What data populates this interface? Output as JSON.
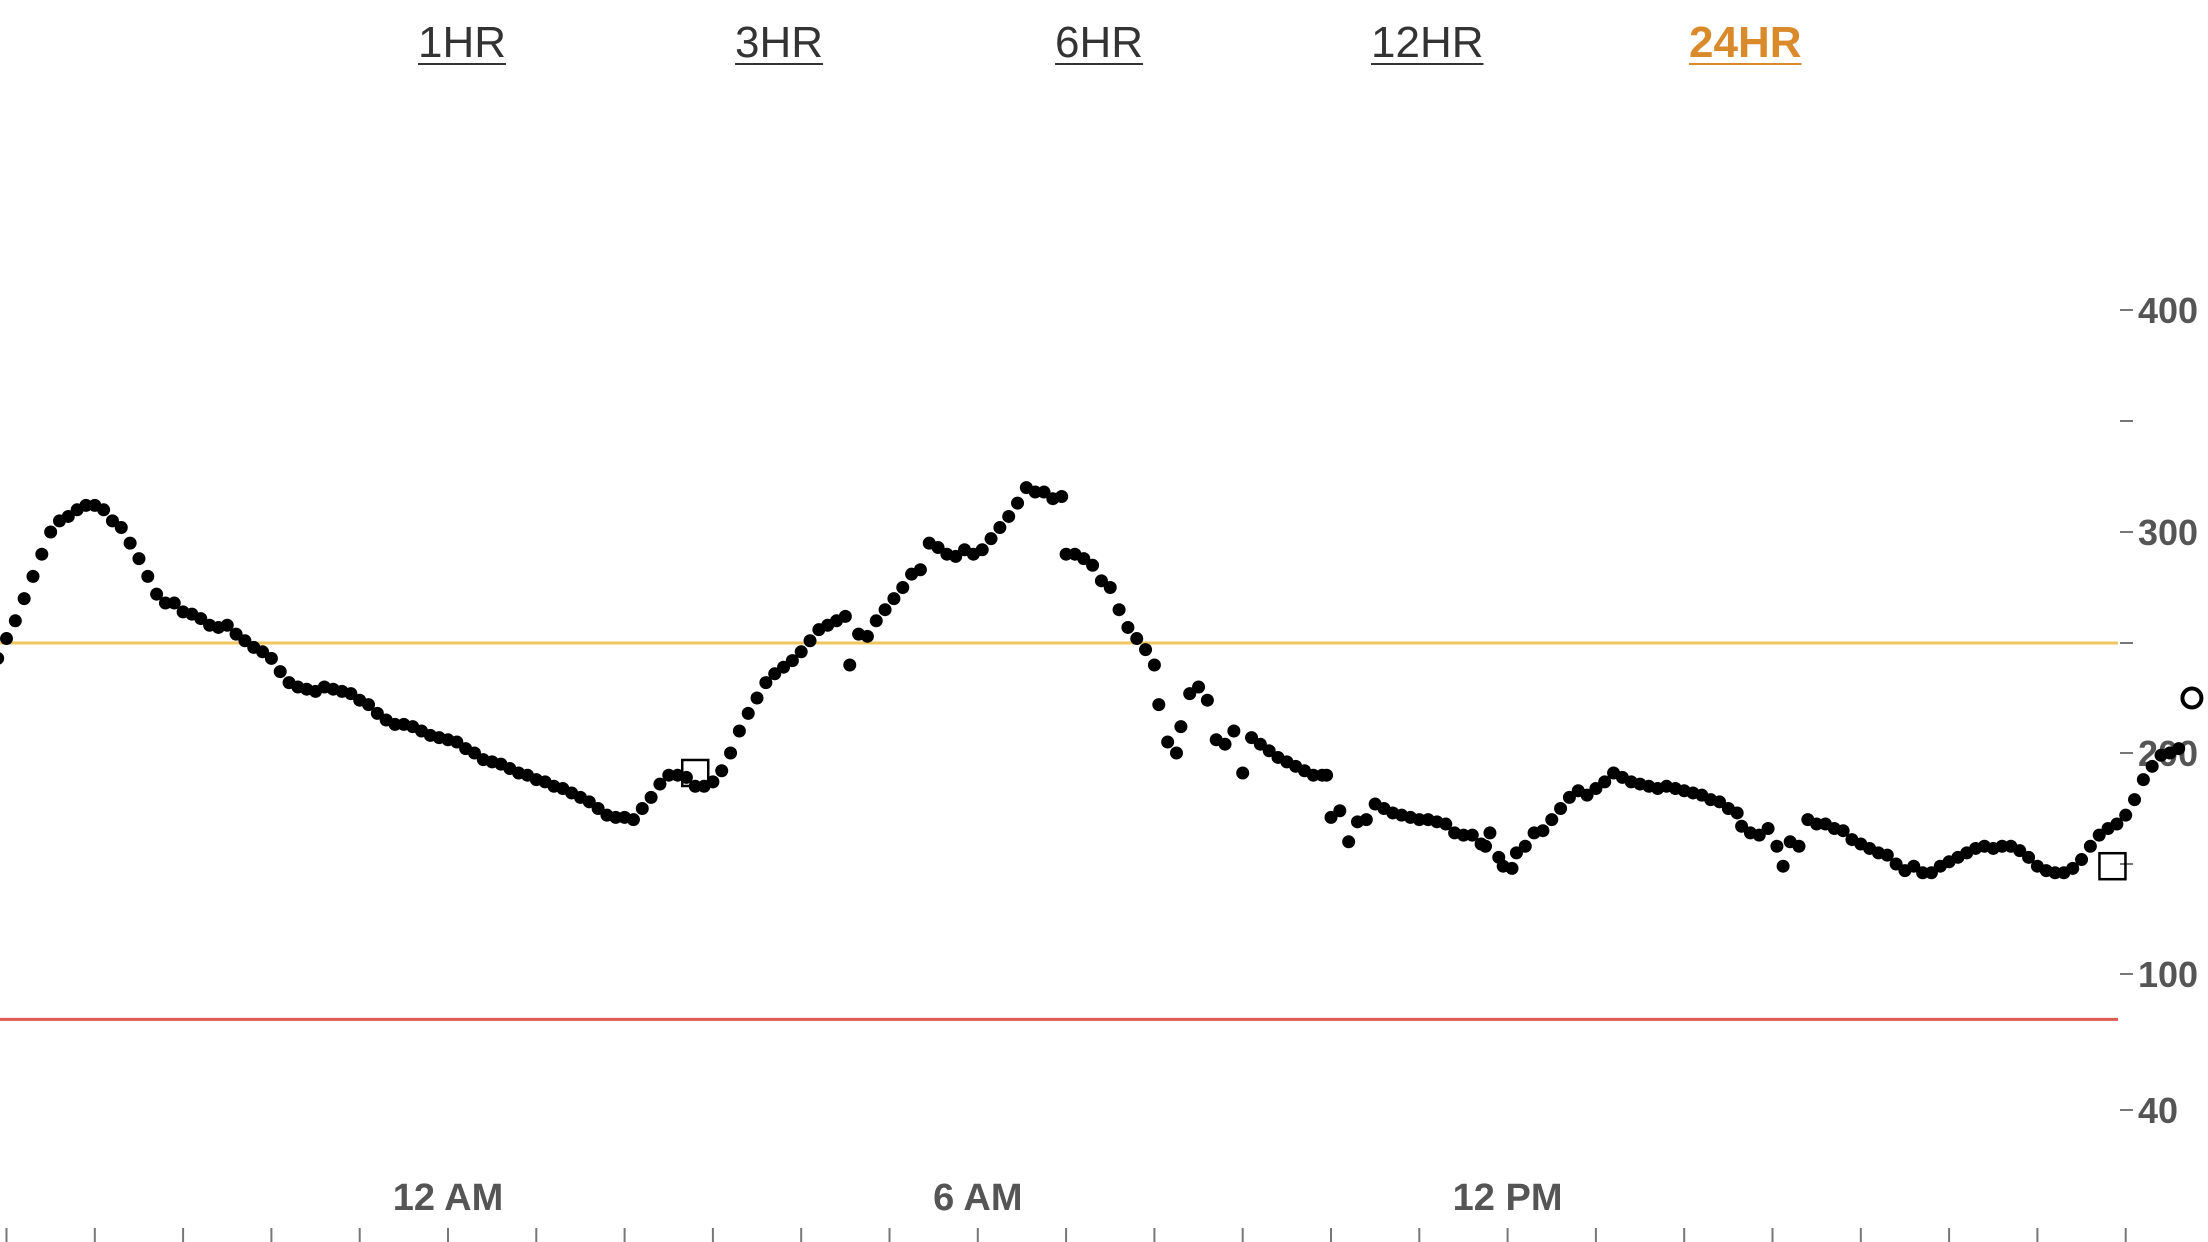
{
  "tabs": [
    {
      "label": "1HR",
      "active": false
    },
    {
      "label": "3HR",
      "active": false
    },
    {
      "label": "6HR",
      "active": false
    },
    {
      "label": "12HR",
      "active": false
    },
    {
      "label": "24HR",
      "active": true
    }
  ],
  "colors": {
    "accent": "#d98a2b",
    "high_line": "#f0c75e",
    "low_line": "#e05a4f",
    "points": "#000000",
    "axis_text": "#555555"
  },
  "chart_data": {
    "type": "scatter",
    "x_unit": "hours relative to midnight",
    "xlim": [
      -5.1,
      18.9
    ],
    "ylim": [
      40,
      400
    ],
    "y_ticks": [
      40,
      100,
      150,
      200,
      250,
      300,
      350,
      400
    ],
    "y_tick_labels": [
      "40",
      "100",
      "",
      "200",
      "",
      "300",
      "",
      "400"
    ],
    "x_labels": [
      {
        "x": 0,
        "label": "12 AM"
      },
      {
        "x": 6,
        "label": "6 AM"
      },
      {
        "x": 12,
        "label": "12 PM"
      }
    ],
    "high_threshold": 250,
    "low_threshold": 80,
    "points": [
      [
        -5.1,
        243
      ],
      [
        -5.0,
        252
      ],
      [
        -4.9,
        260
      ],
      [
        -4.8,
        270
      ],
      [
        -4.7,
        280
      ],
      [
        -4.6,
        290
      ],
      [
        -4.5,
        300
      ],
      [
        -4.4,
        305
      ],
      [
        -4.3,
        307
      ],
      [
        -4.2,
        310
      ],
      [
        -4.1,
        312
      ],
      [
        -4.0,
        312
      ],
      [
        -3.9,
        310
      ],
      [
        -3.8,
        305
      ],
      [
        -3.7,
        302
      ],
      [
        -3.6,
        295
      ],
      [
        -3.5,
        288
      ],
      [
        -3.4,
        280
      ],
      [
        -3.3,
        272
      ],
      [
        -3.2,
        268
      ],
      [
        -3.1,
        268
      ],
      [
        -3.0,
        264
      ],
      [
        -2.9,
        263
      ],
      [
        -2.8,
        261
      ],
      [
        -2.7,
        258
      ],
      [
        -2.6,
        257
      ],
      [
        -2.5,
        258
      ],
      [
        -2.4,
        254
      ],
      [
        -2.3,
        251
      ],
      [
        -2.2,
        248
      ],
      [
        -2.1,
        246
      ],
      [
        -2.0,
        243
      ],
      [
        -1.9,
        237
      ],
      [
        -1.8,
        232
      ],
      [
        -1.7,
        230
      ],
      [
        -1.6,
        229
      ],
      [
        -1.5,
        228
      ],
      [
        -1.4,
        230
      ],
      [
        -1.3,
        229
      ],
      [
        -1.2,
        228
      ],
      [
        -1.1,
        227
      ],
      [
        -1.0,
        224
      ],
      [
        -0.9,
        222
      ],
      [
        -0.8,
        218
      ],
      [
        -0.7,
        215
      ],
      [
        -0.6,
        213
      ],
      [
        -0.5,
        213
      ],
      [
        -0.4,
        212
      ],
      [
        -0.3,
        210
      ],
      [
        -0.2,
        208
      ],
      [
        -0.1,
        207
      ],
      [
        0.0,
        206
      ],
      [
        0.1,
        205
      ],
      [
        0.2,
        202
      ],
      [
        0.3,
        200
      ],
      [
        0.4,
        197
      ],
      [
        0.5,
        196
      ],
      [
        0.6,
        195
      ],
      [
        0.7,
        193
      ],
      [
        0.8,
        191
      ],
      [
        0.9,
        190
      ],
      [
        1.0,
        188
      ],
      [
        1.1,
        187
      ],
      [
        1.2,
        185
      ],
      [
        1.3,
        184
      ],
      [
        1.4,
        182
      ],
      [
        1.5,
        180
      ],
      [
        1.6,
        178
      ],
      [
        1.7,
        175
      ],
      [
        1.8,
        172
      ],
      [
        1.9,
        171
      ],
      [
        2.0,
        171
      ],
      [
        2.1,
        170
      ],
      [
        2.2,
        175
      ],
      [
        2.3,
        180
      ],
      [
        2.4,
        186
      ],
      [
        2.5,
        190
      ],
      [
        2.6,
        190
      ],
      [
        2.7,
        189
      ],
      [
        2.8,
        185
      ],
      [
        2.9,
        185
      ],
      [
        3.0,
        187
      ],
      [
        3.1,
        192
      ],
      [
        3.2,
        200
      ],
      [
        3.3,
        210
      ],
      [
        3.4,
        218
      ],
      [
        3.5,
        225
      ],
      [
        3.6,
        232
      ],
      [
        3.7,
        236
      ],
      [
        3.8,
        239
      ],
      [
        3.9,
        242
      ],
      [
        4.0,
        246
      ],
      [
        4.1,
        251
      ],
      [
        4.2,
        256
      ],
      [
        4.3,
        258
      ],
      [
        4.4,
        260
      ],
      [
        4.5,
        262
      ],
      [
        4.55,
        240
      ],
      [
        4.65,
        254
      ],
      [
        4.75,
        253
      ],
      [
        4.85,
        260
      ],
      [
        4.95,
        265
      ],
      [
        5.05,
        270
      ],
      [
        5.15,
        275
      ],
      [
        5.25,
        281
      ],
      [
        5.35,
        283
      ],
      [
        5.45,
        295
      ],
      [
        5.55,
        293
      ],
      [
        5.65,
        290
      ],
      [
        5.75,
        289
      ],
      [
        5.85,
        292
      ],
      [
        5.95,
        290
      ],
      [
        6.05,
        292
      ],
      [
        6.15,
        297
      ],
      [
        6.25,
        302
      ],
      [
        6.35,
        307
      ],
      [
        6.45,
        313
      ],
      [
        6.55,
        320
      ],
      [
        6.65,
        318
      ],
      [
        6.75,
        318
      ],
      [
        6.85,
        315
      ],
      [
        6.95,
        316
      ],
      [
        7.0,
        290
      ],
      [
        7.1,
        290
      ],
      [
        7.2,
        288
      ],
      [
        7.3,
        285
      ],
      [
        7.4,
        278
      ],
      [
        7.5,
        275
      ],
      [
        7.6,
        265
      ],
      [
        7.7,
        257
      ],
      [
        7.8,
        252
      ],
      [
        7.9,
        247
      ],
      [
        8.0,
        240
      ],
      [
        8.05,
        222
      ],
      [
        8.15,
        205
      ],
      [
        8.25,
        200
      ],
      [
        8.3,
        212
      ],
      [
        8.4,
        227
      ],
      [
        8.5,
        230
      ],
      [
        8.6,
        224
      ],
      [
        8.7,
        206
      ],
      [
        8.8,
        204
      ],
      [
        8.9,
        210
      ],
      [
        9.0,
        191
      ],
      [
        9.1,
        207
      ],
      [
        9.2,
        204
      ],
      [
        9.3,
        201
      ],
      [
        9.4,
        198
      ],
      [
        9.5,
        196
      ],
      [
        9.6,
        194
      ],
      [
        9.7,
        192
      ],
      [
        9.8,
        190
      ],
      [
        9.9,
        190
      ],
      [
        9.95,
        190
      ],
      [
        10.0,
        171
      ],
      [
        10.1,
        174
      ],
      [
        10.2,
        160
      ],
      [
        10.3,
        169
      ],
      [
        10.4,
        170
      ],
      [
        10.5,
        177
      ],
      [
        10.6,
        175
      ],
      [
        10.7,
        173
      ],
      [
        10.8,
        172
      ],
      [
        10.9,
        171
      ],
      [
        11.0,
        170
      ],
      [
        11.1,
        170
      ],
      [
        11.2,
        169
      ],
      [
        11.3,
        168
      ],
      [
        11.4,
        164
      ],
      [
        11.5,
        163
      ],
      [
        11.6,
        163
      ],
      [
        11.7,
        159
      ],
      [
        11.75,
        158
      ],
      [
        11.8,
        164
      ],
      [
        11.9,
        153
      ],
      [
        11.95,
        149
      ],
      [
        12.05,
        148
      ],
      [
        12.1,
        155
      ],
      [
        12.2,
        158
      ],
      [
        12.3,
        164
      ],
      [
        12.4,
        165
      ],
      [
        12.5,
        170
      ],
      [
        12.6,
        175
      ],
      [
        12.7,
        180
      ],
      [
        12.8,
        183
      ],
      [
        12.9,
        181
      ],
      [
        13.0,
        184
      ],
      [
        13.1,
        187
      ],
      [
        13.2,
        191
      ],
      [
        13.3,
        189
      ],
      [
        13.4,
        187
      ],
      [
        13.5,
        186
      ],
      [
        13.6,
        185
      ],
      [
        13.7,
        184
      ],
      [
        13.8,
        185
      ],
      [
        13.9,
        184
      ],
      [
        14.0,
        183
      ],
      [
        14.1,
        182
      ],
      [
        14.2,
        181
      ],
      [
        14.3,
        179
      ],
      [
        14.4,
        178
      ],
      [
        14.5,
        175
      ],
      [
        14.6,
        173
      ],
      [
        14.65,
        167
      ],
      [
        14.75,
        164
      ],
      [
        14.85,
        163
      ],
      [
        14.95,
        166
      ],
      [
        15.05,
        158
      ],
      [
        15.12,
        149
      ],
      [
        15.2,
        160
      ],
      [
        15.3,
        158
      ],
      [
        15.4,
        170
      ],
      [
        15.5,
        168
      ],
      [
        15.6,
        168
      ],
      [
        15.7,
        166
      ],
      [
        15.8,
        165
      ],
      [
        15.9,
        161
      ],
      [
        16.0,
        159
      ],
      [
        16.1,
        157
      ],
      [
        16.2,
        155
      ],
      [
        16.3,
        154
      ],
      [
        16.4,
        150
      ],
      [
        16.5,
        147
      ],
      [
        16.6,
        149
      ],
      [
        16.7,
        146
      ],
      [
        16.8,
        146
      ],
      [
        16.9,
        149
      ],
      [
        17.0,
        151
      ],
      [
        17.1,
        153
      ],
      [
        17.2,
        155
      ],
      [
        17.3,
        157
      ],
      [
        17.4,
        158
      ],
      [
        17.5,
        157
      ],
      [
        17.6,
        158
      ],
      [
        17.7,
        158
      ],
      [
        17.8,
        156
      ],
      [
        17.9,
        153
      ],
      [
        18.0,
        149
      ],
      [
        18.1,
        147
      ],
      [
        18.2,
        146
      ],
      [
        18.3,
        146
      ],
      [
        18.4,
        148
      ],
      [
        18.5,
        152
      ],
      [
        18.6,
        158
      ],
      [
        18.7,
        163
      ],
      [
        18.8,
        166
      ],
      [
        18.9,
        168
      ],
      [
        19.0,
        172
      ],
      [
        19.1,
        179
      ],
      [
        19.2,
        188
      ],
      [
        19.3,
        194
      ],
      [
        19.4,
        199
      ],
      [
        19.5,
        200
      ],
      [
        19.6,
        202
      ]
    ],
    "square_markers": [
      [
        2.8,
        191
      ],
      [
        18.85,
        149
      ]
    ],
    "open_circle": [
      19.75,
      225
    ]
  }
}
